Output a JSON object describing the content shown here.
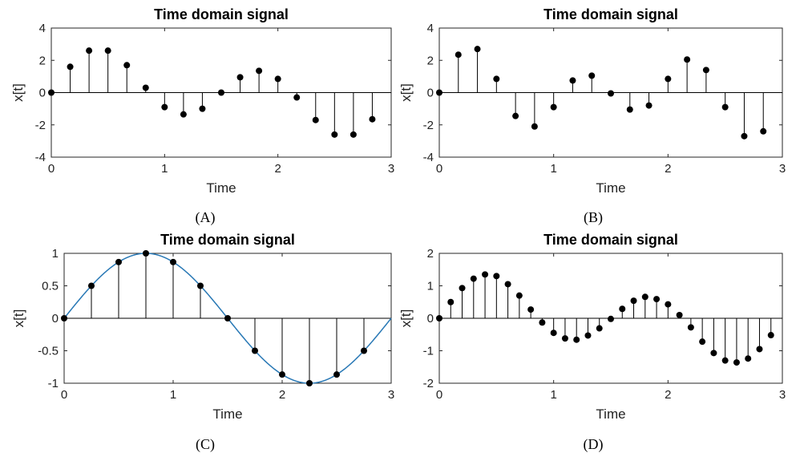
{
  "chart_data": [
    {
      "panel": "A",
      "type": "stem",
      "title": "Time domain signal",
      "xlabel": "Time",
      "ylabel": "x[t]",
      "caption": "(A)",
      "xlim": [
        0,
        3
      ],
      "ylim": [
        -4,
        4
      ],
      "xticks": [
        "0",
        "1",
        "2",
        "3"
      ],
      "xtick_values": [
        0,
        1,
        2,
        3
      ],
      "yticks": [
        "4",
        "2",
        "0",
        "-2",
        "-4"
      ],
      "ytick_values": [
        4,
        2,
        0,
        -2,
        -4
      ],
      "series": [
        {
          "x": [
            0,
            0.1667,
            0.3333,
            0.5,
            0.6667,
            0.8333,
            1.0,
            1.1667,
            1.3333,
            1.5,
            1.6667,
            1.8333,
            2.0,
            2.1667,
            2.3333,
            2.5,
            2.6667,
            2.8333
          ],
          "y": [
            0,
            1.6,
            2.6,
            2.6,
            1.7,
            0.3,
            -0.9,
            -1.35,
            -1.0,
            0,
            0.95,
            1.35,
            0.85,
            -0.3,
            -1.7,
            -2.6,
            -2.6,
            -1.65
          ]
        }
      ]
    },
    {
      "panel": "B",
      "type": "stem",
      "title": "Time domain signal",
      "xlabel": "Time",
      "ylabel": "x[t]",
      "caption": "(B)",
      "xlim": [
        0,
        3
      ],
      "ylim": [
        -4,
        4
      ],
      "xticks": [
        "0",
        "1",
        "2",
        "3"
      ],
      "xtick_values": [
        0,
        1,
        2,
        3
      ],
      "yticks": [
        "4",
        "2",
        "0",
        "-2",
        "-4"
      ],
      "ytick_values": [
        4,
        2,
        0,
        -2,
        -4
      ],
      "series": [
        {
          "x": [
            0,
            0.1667,
            0.3333,
            0.5,
            0.6667,
            0.8333,
            1.0,
            1.1667,
            1.3333,
            1.5,
            1.6667,
            1.8333,
            2.0,
            2.1667,
            2.3333,
            2.5,
            2.6667,
            2.8333
          ],
          "y": [
            0,
            2.35,
            2.7,
            0.85,
            -1.45,
            -2.1,
            -0.9,
            0.75,
            1.05,
            -0.05,
            -1.05,
            -0.8,
            0.85,
            2.05,
            1.4,
            -0.9,
            -2.7,
            -2.4
          ]
        }
      ]
    },
    {
      "panel": "C",
      "type": "stem",
      "title": "Time domain signal",
      "xlabel": "Time",
      "ylabel": "x[t]",
      "caption": "(C)",
      "xlim": [
        0,
        3
      ],
      "ylim": [
        -1,
        1
      ],
      "xticks": [
        "0",
        "1",
        "2",
        "3"
      ],
      "xtick_values": [
        0,
        1,
        2,
        3
      ],
      "yticks": [
        "1",
        "0.5",
        "0",
        "-0.5",
        "-1"
      ],
      "ytick_values": [
        1,
        0.5,
        0,
        -0.5,
        -1
      ],
      "curve_color": "#2878b5",
      "series": [
        {
          "x": [
            0,
            0.25,
            0.5,
            0.75,
            1.0,
            1.25,
            1.5,
            1.75,
            2.0,
            2.25,
            2.5,
            2.75
          ],
          "y": [
            0,
            0.5,
            0.866,
            1.0,
            0.866,
            0.5,
            0,
            -0.5,
            -0.866,
            -1.0,
            -0.866,
            -0.5
          ]
        }
      ]
    },
    {
      "panel": "D",
      "type": "stem",
      "title": "Time domain signal",
      "xlabel": "Time",
      "ylabel": "x[t]",
      "caption": "(D)",
      "xlim": [
        0,
        3
      ],
      "ylim": [
        -2,
        2
      ],
      "xticks": [
        "0",
        "1",
        "2",
        "3"
      ],
      "xtick_values": [
        0,
        1,
        2,
        3
      ],
      "yticks": [
        "2",
        "1",
        "0",
        "-1",
        "-2"
      ],
      "ytick_values": [
        2,
        1,
        0,
        -1,
        -2
      ],
      "series": [
        {
          "x": [
            0,
            0.1,
            0.2,
            0.3,
            0.4,
            0.5,
            0.6,
            0.7,
            0.8,
            0.9,
            1.0,
            1.1,
            1.2,
            1.3,
            1.4,
            1.5,
            1.6,
            1.7,
            1.8,
            1.9,
            2.0,
            2.1,
            2.2,
            2.3,
            2.4,
            2.5,
            2.6,
            2.7,
            2.8,
            2.9
          ],
          "y": [
            0,
            0.5,
            0.93,
            1.22,
            1.35,
            1.3,
            1.05,
            0.7,
            0.27,
            -0.13,
            -0.45,
            -0.62,
            -0.66,
            -0.53,
            -0.31,
            -0.02,
            0.29,
            0.54,
            0.66,
            0.59,
            0.43,
            0.1,
            -0.28,
            -0.72,
            -1.07,
            -1.3,
            -1.36,
            -1.24,
            -0.95,
            -0.52
          ]
        }
      ]
    }
  ]
}
